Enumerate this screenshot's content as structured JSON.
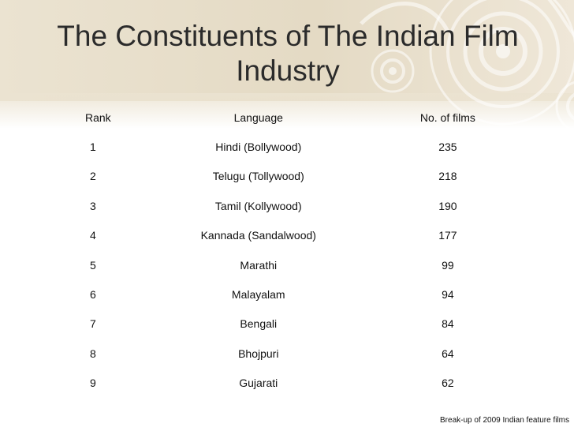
{
  "slide": {
    "title": "The Constituents of The Indian Film Industry",
    "caption": "Break-up of 2009 Indian feature films"
  },
  "colors": {
    "header_band": "#e8dfcb",
    "decoration": "#ffffff",
    "text": "#111111"
  },
  "table": {
    "headers": [
      "Rank",
      "Language",
      "No. of films"
    ],
    "rows": [
      [
        "1",
        "Hindi (Bollywood)",
        "235"
      ],
      [
        "2",
        "Telugu (Tollywood)",
        "218"
      ],
      [
        "3",
        "Tamil (Kollywood)",
        "190"
      ],
      [
        "4",
        "Kannada (Sandalwood)",
        "177"
      ],
      [
        "5",
        "Marathi",
        "99"
      ],
      [
        "6",
        "Malayalam",
        "94"
      ],
      [
        "7",
        "Bengali",
        "84"
      ],
      [
        "8",
        "Bhojpuri",
        "64"
      ],
      [
        "9",
        "Gujarati",
        "62"
      ]
    ]
  }
}
